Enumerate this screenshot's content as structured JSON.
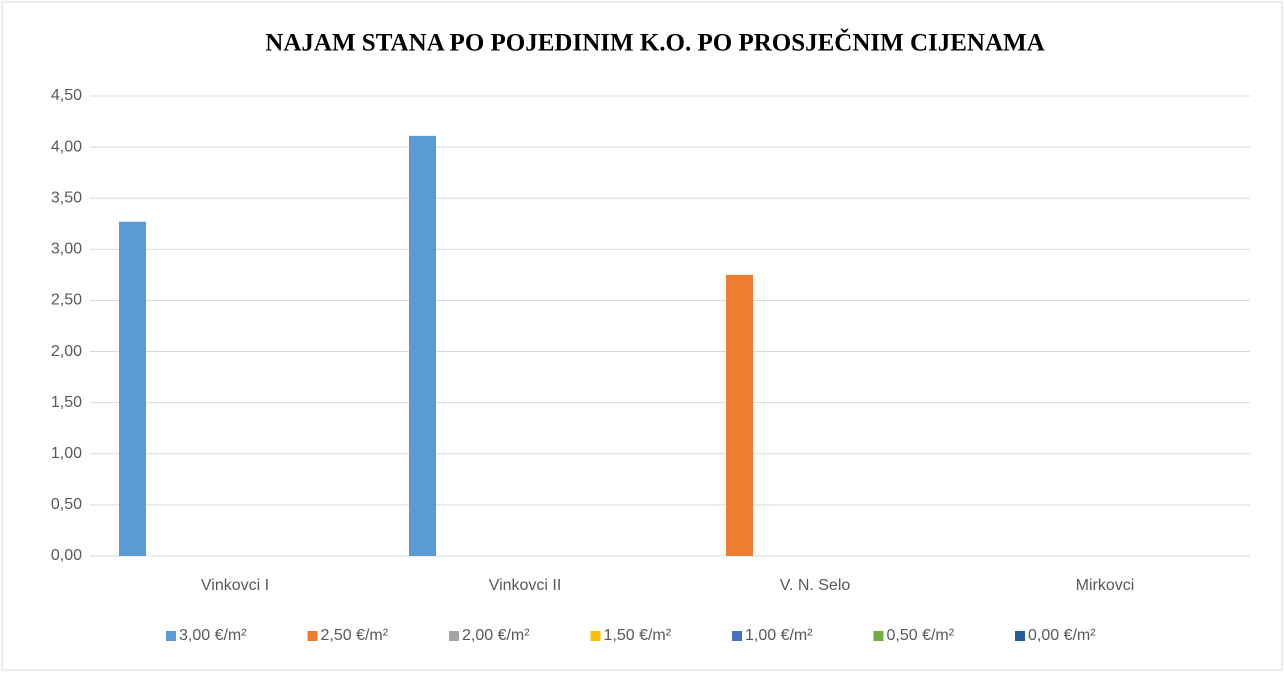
{
  "chart_data": {
    "type": "bar",
    "title": "NAJAM STANA PO POJEDINIM K.O. PO PROSJEČNIM CIJENAMA",
    "categories": [
      "Vinkovci I",
      "Vinkovci II",
      "V. N. Selo",
      "Mirkovci"
    ],
    "series": [
      {
        "name": "3,00 €/m²",
        "color": "#5b9bd5",
        "values": [
          3.27,
          4.11,
          null,
          null
        ]
      },
      {
        "name": "2,50 €/m²",
        "color": "#ed7d31",
        "values": [
          null,
          null,
          2.75,
          null
        ]
      },
      {
        "name": "2,00 €/m²",
        "color": "#a5a5a5",
        "values": [
          null,
          null,
          null,
          null
        ]
      },
      {
        "name": "1,50 €/m²",
        "color": "#ffc000",
        "values": [
          null,
          null,
          null,
          null
        ]
      },
      {
        "name": "1,00 €/m²",
        "color": "#4472c4",
        "values": [
          null,
          null,
          null,
          null
        ]
      },
      {
        "name": "0,50 €/m²",
        "color": "#70ad47",
        "values": [
          null,
          null,
          null,
          null
        ]
      },
      {
        "name": "0,00 €/m²",
        "color": "#255e91",
        "values": [
          null,
          null,
          null,
          null
        ]
      }
    ],
    "ylim": [
      0,
      4.5
    ],
    "yticks": [
      {
        "value": 0,
        "label": "0,00"
      },
      {
        "value": 0.5,
        "label": "0,50"
      },
      {
        "value": 1,
        "label": "1,00"
      },
      {
        "value": 1.5,
        "label": "1,50"
      },
      {
        "value": 2,
        "label": "2,00"
      },
      {
        "value": 2.5,
        "label": "2,50"
      },
      {
        "value": 3,
        "label": "3,00"
      },
      {
        "value": 3.5,
        "label": "3,50"
      },
      {
        "value": 4,
        "label": "4,00"
      },
      {
        "value": 4.5,
        "label": "4,50"
      }
    ],
    "grid": true,
    "legend": "bottom"
  }
}
